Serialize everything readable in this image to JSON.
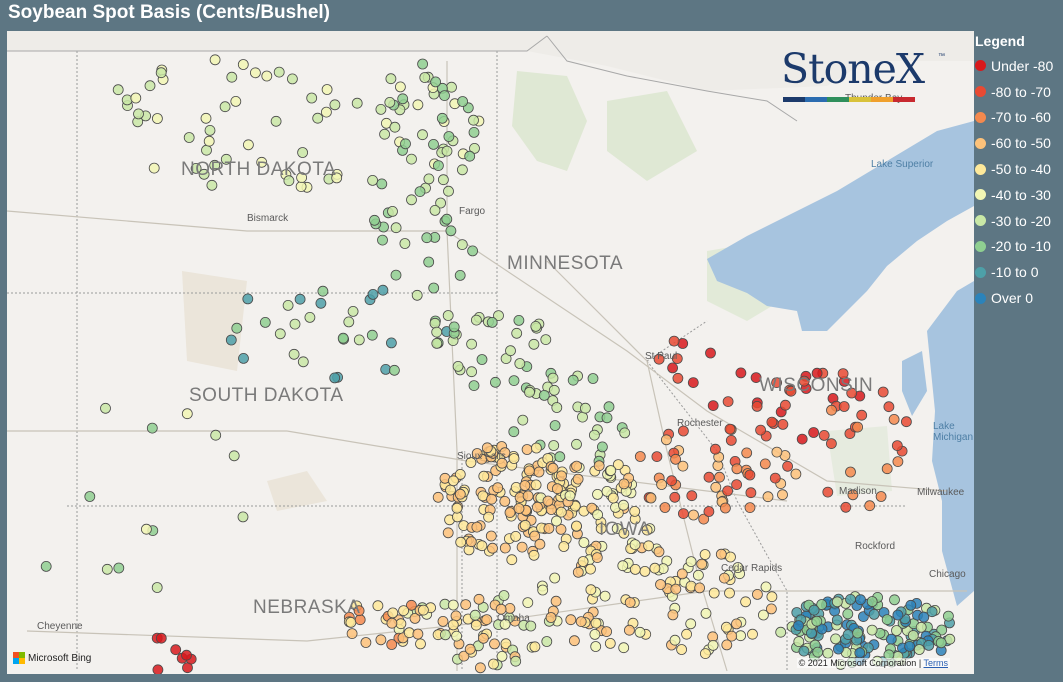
{
  "title": "Soybean Spot Basis (Cents/Bushel)",
  "legend": {
    "title": "Legend",
    "items": [
      {
        "label": "Under -80",
        "color": "#d7191c"
      },
      {
        "label": "-80 to -70",
        "color": "#e84a33"
      },
      {
        "label": "-70 to -60",
        "color": "#f4894e"
      },
      {
        "label": "-60 to -50",
        "color": "#fdc27a"
      },
      {
        "label": "-50 to -40",
        "color": "#fee99a"
      },
      {
        "label": "-40 to -30",
        "color": "#f1f6b4"
      },
      {
        "label": "-30 to -20",
        "color": "#c9e8a6"
      },
      {
        "label": "-20 to -10",
        "color": "#8fcf91"
      },
      {
        "label": "-10 to 0",
        "color": "#4da0a8"
      },
      {
        "label": "Over 0",
        "color": "#2b83ba"
      }
    ]
  },
  "map": {
    "states": [
      "NORTH DAKOTA",
      "MINNESOTA",
      "SOUTH DAKOTA",
      "WISCONSIN",
      "NEBRASKA",
      "IOWA"
    ],
    "cities": [
      "Bismarck",
      "Fargo",
      "St Paul",
      "Rochester",
      "Sioux Falls",
      "Madison",
      "Milwaukee",
      "Rockford",
      "Cedar Rapids",
      "Chicago",
      "Omaha",
      "Cheyenne",
      "Thunder Bay"
    ],
    "water": [
      "Lake Superior",
      "Lake Michigan"
    ],
    "provider": "Microsoft Bing",
    "copyright": "© 2021 Microsoft Corporation",
    "terms": "Terms"
  },
  "brand": {
    "name": "StoneX",
    "tm": "™",
    "bar_colors": [
      "#1c3a6b",
      "#2b6cb0",
      "#2f8f5b",
      "#d9c23a",
      "#f0a02c",
      "#c8292f"
    ]
  }
}
